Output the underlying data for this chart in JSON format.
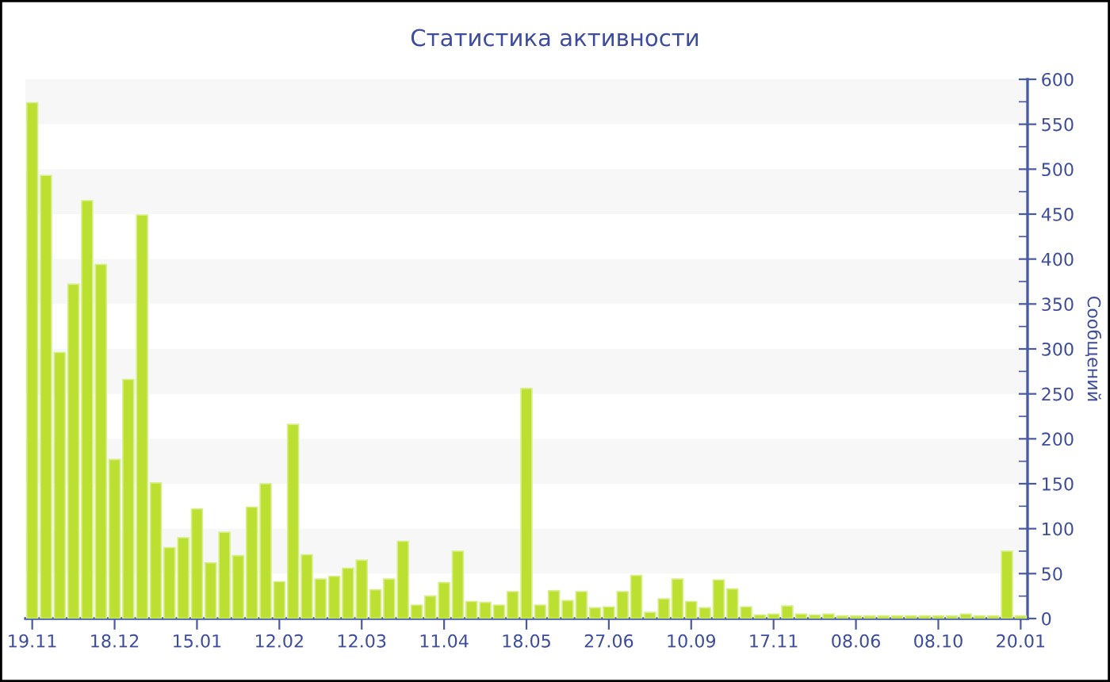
{
  "chart_data": {
    "type": "bar",
    "title": "Статистика активности",
    "ylabel": "Сообщений",
    "categories": [
      "19.11",
      null,
      null,
      null,
      null,
      null,
      "18.12",
      null,
      null,
      null,
      null,
      null,
      "15.01",
      null,
      null,
      null,
      null,
      null,
      "12.02",
      null,
      null,
      null,
      null,
      null,
      "12.03",
      null,
      null,
      null,
      null,
      null,
      "11.04",
      null,
      null,
      null,
      null,
      null,
      "18.05",
      null,
      null,
      null,
      null,
      null,
      "27.06",
      null,
      null,
      null,
      null,
      null,
      "10.09",
      null,
      null,
      null,
      null,
      null,
      "17.11",
      null,
      null,
      null,
      null,
      null,
      "08.06",
      null,
      null,
      null,
      null,
      null,
      "08.10",
      null,
      null,
      null,
      null,
      null,
      "20.01"
    ],
    "values": [
      574,
      493,
      296,
      372,
      465,
      394,
      177,
      266,
      449,
      151,
      79,
      90,
      122,
      62,
      96,
      70,
      124,
      150,
      41,
      216,
      71,
      44,
      47,
      56,
      65,
      32,
      44,
      86,
      15,
      25,
      40,
      75,
      19,
      18,
      15,
      30,
      256,
      15,
      31,
      20,
      30,
      12,
      13,
      30,
      48,
      7,
      22,
      44,
      19,
      12,
      43,
      33,
      13,
      4,
      5,
      14,
      5,
      4,
      5,
      3,
      3,
      3,
      3,
      3,
      3,
      3,
      3,
      3,
      5,
      3,
      3,
      75,
      3
    ],
    "color": "#bce032",
    "ylim": [
      0,
      600
    ],
    "yticks": [
      0,
      50,
      100,
      150,
      200,
      250,
      300,
      350,
      400,
      450,
      500,
      550,
      600
    ],
    "grid": false,
    "bands": [
      {
        "axis": "y",
        "from": 50,
        "to": 100,
        "color": "#f7f7f7"
      },
      {
        "axis": "y",
        "from": 150,
        "to": 200,
        "color": "#f7f7f7"
      },
      {
        "axis": "y",
        "from": 250,
        "to": 300,
        "color": "#f7f7f7"
      },
      {
        "axis": "y",
        "from": 350,
        "to": 400,
        "color": "#f7f7f7"
      },
      {
        "axis": "y",
        "from": 450,
        "to": 500,
        "color": "#f7f7f7"
      },
      {
        "axis": "y",
        "from": 550,
        "to": 600,
        "color": "#f7f7f7"
      }
    ]
  }
}
